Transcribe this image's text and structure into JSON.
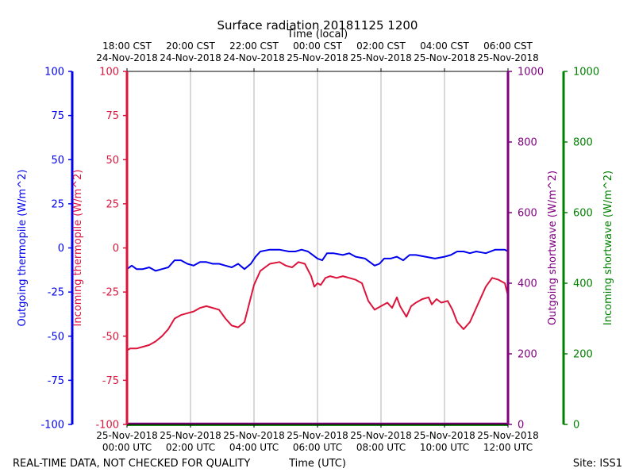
{
  "chart_data": {
    "type": "line",
    "title": "Surface radiation 20181125 1200",
    "top_axis_label": "Time (local)",
    "bottom_axis_label": "Time (UTC)",
    "footer_left": "REAL-TIME DATA, NOT CHECKED FOR QUALITY",
    "footer_right": "Site: ISS1",
    "x_range_hours_utc": [
      0,
      12
    ],
    "top_ticks": [
      {
        "h": 0,
        "l1": "18:00 CST",
        "l2": "24-Nov-2018"
      },
      {
        "h": 2,
        "l1": "20:00 CST",
        "l2": "24-Nov-2018"
      },
      {
        "h": 4,
        "l1": "22:00 CST",
        "l2": "24-Nov-2018"
      },
      {
        "h": 6,
        "l1": "00:00 CST",
        "l2": "25-Nov-2018"
      },
      {
        "h": 8,
        "l1": "02:00 CST",
        "l2": "25-Nov-2018"
      },
      {
        "h": 10,
        "l1": "04:00 CST",
        "l2": "25-Nov-2018"
      },
      {
        "h": 12,
        "l1": "06:00 CST",
        "l2": "25-Nov-2018"
      }
    ],
    "bottom_ticks": [
      {
        "h": 0,
        "l1": "25-Nov-2018",
        "l2": "00:00 UTC"
      },
      {
        "h": 2,
        "l1": "25-Nov-2018",
        "l2": "02:00 UTC"
      },
      {
        "h": 4,
        "l1": "25-Nov-2018",
        "l2": "04:00 UTC"
      },
      {
        "h": 6,
        "l1": "25-Nov-2018",
        "l2": "06:00 UTC"
      },
      {
        "h": 8,
        "l1": "25-Nov-2018",
        "l2": "08:00 UTC"
      },
      {
        "h": 10,
        "l1": "25-Nov-2018",
        "l2": "10:00 UTC"
      },
      {
        "h": 12,
        "l1": "25-Nov-2018",
        "l2": "12:00 UTC"
      }
    ],
    "axes": [
      {
        "id": "out_thermo",
        "label": "Outgoing thermopile (W/m^2)",
        "color": "#0000ee",
        "range": [
          -100,
          100
        ],
        "ticks": [
          -100,
          -75,
          -50,
          -25,
          0,
          25,
          50,
          75,
          100
        ]
      },
      {
        "id": "in_thermo",
        "label": "Incoming thermopile (W/m^2)",
        "color": "#dc143c",
        "range": [
          -100,
          100
        ],
        "ticks": [
          -100,
          -75,
          -50,
          -25,
          0,
          25,
          50,
          75,
          100
        ]
      },
      {
        "id": "out_sw",
        "label": "Outgoing shortwave (W/m^2)",
        "color": "#800080",
        "range": [
          0,
          1000
        ],
        "ticks": [
          0,
          200,
          400,
          600,
          800,
          1000
        ]
      },
      {
        "id": "in_sw",
        "label": "Incoming shortwave (W/m^2)",
        "color": "#008000",
        "range": [
          0,
          1000
        ],
        "ticks": [
          0,
          200,
          400,
          600,
          800,
          1000
        ]
      }
    ],
    "series": [
      {
        "name": "Outgoing thermopile",
        "axis": "out_thermo",
        "color": "#0000ee",
        "x": [
          0,
          0.15,
          0.3,
          0.5,
          0.7,
          0.9,
          1.1,
          1.3,
          1.5,
          1.7,
          1.9,
          2.1,
          2.3,
          2.5,
          2.7,
          2.9,
          3.1,
          3.3,
          3.5,
          3.7,
          3.9,
          4.05,
          4.2,
          4.5,
          4.8,
          5.1,
          5.3,
          5.5,
          5.7,
          5.85,
          6.0,
          6.15,
          6.3,
          6.5,
          6.8,
          7.0,
          7.2,
          7.5,
          7.8,
          7.95,
          8.1,
          8.3,
          8.5,
          8.7,
          8.9,
          9.1,
          9.4,
          9.7,
          10.0,
          10.2,
          10.4,
          10.6,
          10.8,
          11.0,
          11.3,
          11.6,
          11.9,
          12.0
        ],
        "values": [
          -12,
          -10,
          -12,
          -12,
          -11,
          -13,
          -12,
          -11,
          -7,
          -7,
          -9,
          -10,
          -8,
          -8,
          -9,
          -9,
          -10,
          -11,
          -9,
          -12,
          -9,
          -5,
          -2,
          -1,
          -1,
          -2,
          -2,
          -1,
          -2,
          -4,
          -6,
          -7,
          -3,
          -3,
          -4,
          -3,
          -5,
          -6,
          -10,
          -9,
          -6,
          -6,
          -5,
          -7,
          -4,
          -4,
          -5,
          -6,
          -5,
          -4,
          -2,
          -2,
          -3,
          -2,
          -3,
          -1,
          -1,
          -2
        ]
      },
      {
        "name": "Incoming thermopile",
        "axis": "in_thermo",
        "color": "#dc143c",
        "x": [
          0,
          0.1,
          0.3,
          0.5,
          0.7,
          0.9,
          1.1,
          1.3,
          1.5,
          1.7,
          1.9,
          2.1,
          2.3,
          2.5,
          2.7,
          2.9,
          3.1,
          3.3,
          3.5,
          3.7,
          3.9,
          4.0,
          4.2,
          4.5,
          4.8,
          5.0,
          5.2,
          5.4,
          5.6,
          5.8,
          5.9,
          6.0,
          6.1,
          6.25,
          6.4,
          6.6,
          6.8,
          7.0,
          7.2,
          7.4,
          7.6,
          7.8,
          8.0,
          8.2,
          8.35,
          8.5,
          8.6,
          8.7,
          8.8,
          8.95,
          9.1,
          9.3,
          9.5,
          9.6,
          9.75,
          9.9,
          10.1,
          10.25,
          10.4,
          10.6,
          10.8,
          11.0,
          11.15,
          11.3,
          11.5,
          11.7,
          11.9,
          12.0
        ],
        "values": [
          -58,
          -57,
          -57,
          -56,
          -55,
          -53,
          -50,
          -46,
          -40,
          -38,
          -37,
          -36,
          -34,
          -33,
          -34,
          -35,
          -40,
          -44,
          -45,
          -42,
          -28,
          -21,
          -13,
          -9,
          -8,
          -10,
          -11,
          -8,
          -9,
          -16,
          -22,
          -20,
          -21,
          -17,
          -16,
          -17,
          -16,
          -17,
          -18,
          -20,
          -30,
          -35,
          -33,
          -31,
          -34,
          -28,
          -33,
          -36,
          -39,
          -33,
          -31,
          -29,
          -28,
          -32,
          -29,
          -31,
          -30,
          -35,
          -42,
          -46,
          -42,
          -34,
          -28,
          -22,
          -17,
          -18,
          -20,
          -27
        ]
      },
      {
        "name": "Outgoing shortwave",
        "axis": "out_sw",
        "color": "#800080",
        "x": [
          0,
          1,
          2,
          3,
          4,
          5,
          6,
          7,
          8,
          9,
          10,
          11,
          12
        ],
        "values": [
          3,
          3,
          3,
          3,
          3,
          3,
          3,
          3,
          3,
          3,
          3,
          3,
          3
        ]
      },
      {
        "name": "Incoming shortwave",
        "axis": "in_sw",
        "color": "#008000",
        "x": [
          0,
          1,
          2,
          3,
          4,
          5,
          6,
          7,
          8,
          9,
          10,
          11,
          12
        ],
        "values": [
          -2,
          -2,
          -2,
          -2,
          -2,
          -2,
          -2,
          -2,
          -2,
          -2,
          -2,
          -2,
          -2
        ]
      }
    ]
  }
}
